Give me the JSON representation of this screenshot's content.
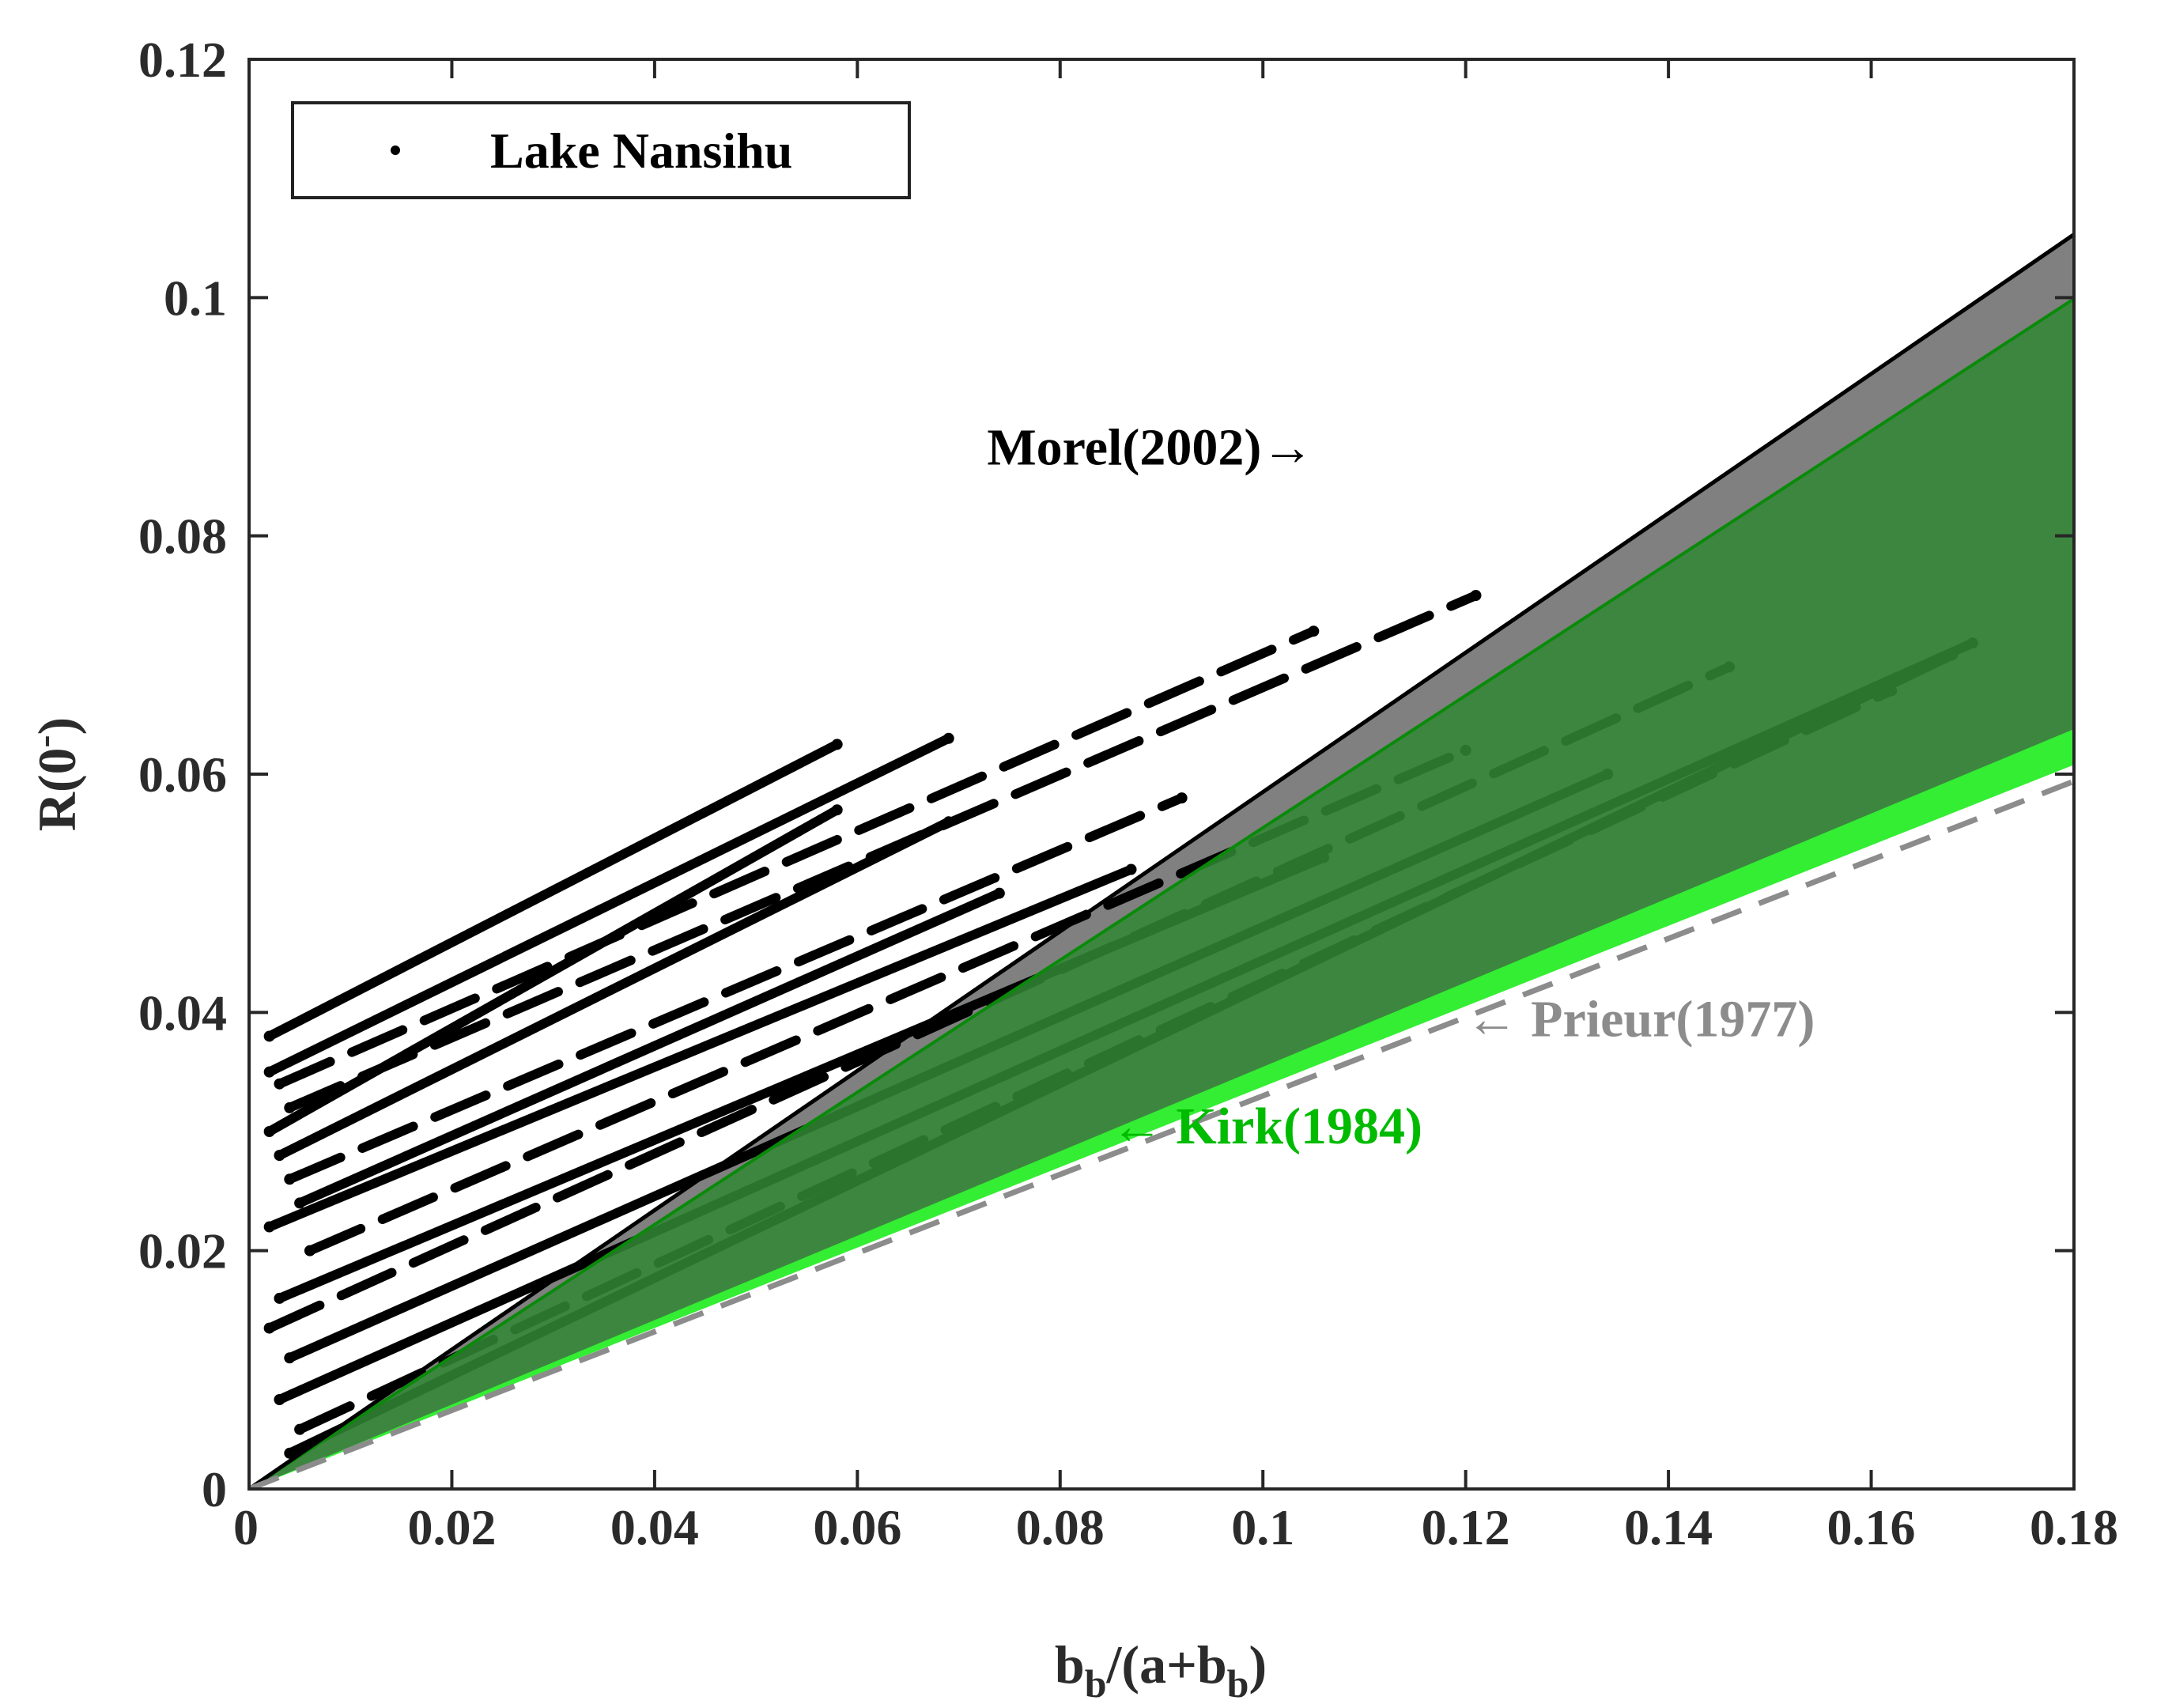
{
  "chart_data": {
    "type": "scatter",
    "title": "",
    "xlabel": {
      "main": "b",
      "sub1": "b",
      "mid": "/(a+b",
      "sub2": "b",
      "end": ")"
    },
    "ylabel": {
      "main": "R(0",
      "sup": "-",
      "end": ")"
    },
    "xlim": [
      0,
      0.18
    ],
    "ylim": [
      0,
      0.12
    ],
    "xticks": [
      0,
      0.02,
      0.04,
      0.06,
      0.08,
      0.1,
      0.12,
      0.14,
      0.16,
      0.18
    ],
    "xtick_labels": [
      "0",
      "0.02",
      "0.04",
      "0.06",
      "0.08",
      "0.1",
      "0.12",
      "0.14",
      "0.16",
      "0.18"
    ],
    "yticks": [
      0,
      0.02,
      0.04,
      0.06,
      0.08,
      0.1,
      0.12
    ],
    "ytick_labels": [
      "0",
      "0.02",
      "0.04",
      "0.06",
      "0.08",
      "0.1",
      "0.12"
    ],
    "grid": false,
    "legend": {
      "position": "top-left",
      "entries": [
        "Lake Nansihu"
      ]
    },
    "models": [
      {
        "name": "Morel(2002)",
        "kind": "band",
        "slope_upper": 0.585,
        "slope_lower": 0.555,
        "color": "#808080",
        "edge": "#000000"
      },
      {
        "name": "Kirk(1984)",
        "kind": "band",
        "slope_upper": 0.555,
        "slope_lower": 0.346,
        "color": "#2e7d32",
        "edge": "#0a8a0a",
        "lower_line_color": "#33ee33"
      },
      {
        "name": "Prieur(1977)",
        "kind": "dashed",
        "slope": 0.33,
        "color": "#8c8c8c"
      }
    ],
    "annotations": [
      {
        "text": "Morel(2002)",
        "arrow": "→",
        "color": "#000000",
        "x": 0.105,
        "y": 0.086
      },
      {
        "text": "Prieur(1977)",
        "arrow": "←",
        "color": "#8c8c8c",
        "x": 0.12,
        "y": 0.038
      },
      {
        "text": "Kirk(1984)",
        "arrow": "←",
        "color": "#00bb00",
        "x": 0.085,
        "y": 0.029
      }
    ],
    "series": [
      {
        "name": "Lake Nansihu",
        "kind": "streaks",
        "x_start": 0.002,
        "x_end": 0.058,
        "y_start": 0.038,
        "y_end": 0.0625,
        "dashed": false
      },
      {
        "name": "Lake Nansihu",
        "kind": "streaks",
        "x_start": 0.002,
        "x_end": 0.069,
        "y_start": 0.035,
        "y_end": 0.063,
        "dashed": false
      },
      {
        "name": "Lake Nansihu",
        "kind": "streaks",
        "x_start": 0.003,
        "x_end": 0.105,
        "y_start": 0.034,
        "y_end": 0.072,
        "dashed": true
      },
      {
        "name": "Lake Nansihu",
        "kind": "streaks",
        "x_start": 0.004,
        "x_end": 0.121,
        "y_start": 0.032,
        "y_end": 0.075,
        "dashed": true
      },
      {
        "name": "Lake Nansihu",
        "kind": "streaks",
        "x_start": 0.002,
        "x_end": 0.058,
        "y_start": 0.03,
        "y_end": 0.057,
        "dashed": false
      },
      {
        "name": "Lake Nansihu",
        "kind": "streaks",
        "x_start": 0.003,
        "x_end": 0.069,
        "y_start": 0.028,
        "y_end": 0.056,
        "dashed": false
      },
      {
        "name": "Lake Nansihu",
        "kind": "streaks",
        "x_start": 0.004,
        "x_end": 0.092,
        "y_start": 0.026,
        "y_end": 0.058,
        "dashed": true
      },
      {
        "name": "Lake Nansihu",
        "kind": "streaks",
        "x_start": 0.005,
        "x_end": 0.074,
        "y_start": 0.024,
        "y_end": 0.05,
        "dashed": false
      },
      {
        "name": "Lake Nansihu",
        "kind": "streaks",
        "x_start": 0.002,
        "x_end": 0.087,
        "y_start": 0.022,
        "y_end": 0.052,
        "dashed": false
      },
      {
        "name": "Lake Nansihu",
        "kind": "streaks",
        "x_start": 0.006,
        "x_end": 0.12,
        "y_start": 0.02,
        "y_end": 0.062,
        "dashed": true
      },
      {
        "name": "Lake Nansihu",
        "kind": "streaks",
        "x_start": 0.003,
        "x_end": 0.106,
        "y_start": 0.016,
        "y_end": 0.053,
        "dashed": false
      },
      {
        "name": "Lake Nansihu",
        "kind": "streaks",
        "x_start": 0.002,
        "x_end": 0.146,
        "y_start": 0.0135,
        "y_end": 0.069,
        "dashed": true
      },
      {
        "name": "Lake Nansihu",
        "kind": "streaks",
        "x_start": 0.004,
        "x_end": 0.134,
        "y_start": 0.011,
        "y_end": 0.06,
        "dashed": false
      },
      {
        "name": "Lake Nansihu",
        "kind": "streaks",
        "x_start": 0.003,
        "x_end": 0.17,
        "y_start": 0.0075,
        "y_end": 0.071,
        "dashed": false
      },
      {
        "name": "Lake Nansihu",
        "kind": "streaks",
        "x_start": 0.005,
        "x_end": 0.162,
        "y_start": 0.005,
        "y_end": 0.067,
        "dashed": true
      },
      {
        "name": "Lake Nansihu",
        "kind": "streaks",
        "x_start": 0.004,
        "x_end": 0.168,
        "y_start": 0.003,
        "y_end": 0.07,
        "dashed": false
      }
    ]
  }
}
